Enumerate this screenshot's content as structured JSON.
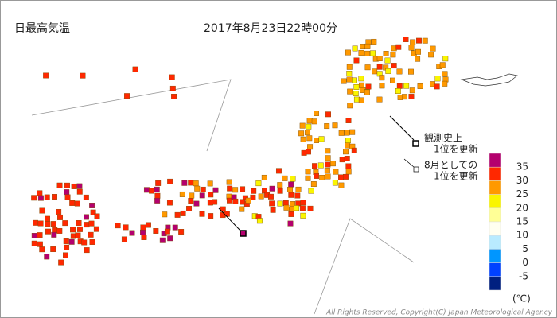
{
  "header": {
    "title": "日最高気温",
    "timestamp": "2017年8月23日22時00分"
  },
  "legend": {
    "record_all_time": [
      "観測史上",
      "1位を更新"
    ],
    "record_august": [
      "8月としての",
      "1位を更新"
    ]
  },
  "color_scale": {
    "colors": [
      "#b4006e",
      "#ff2800",
      "#ff9900",
      "#faf500",
      "#ffff96",
      "#fffff0",
      "#b9ebff",
      "#0096ff",
      "#0041ff",
      "#002080"
    ],
    "ticks": [
      35,
      30,
      25,
      20,
      15,
      10,
      5,
      0,
      -5
    ],
    "unit": "(℃)"
  },
  "copyright": "All Rights Reserved, Copyright(C) Japan Meteorological Agency"
}
